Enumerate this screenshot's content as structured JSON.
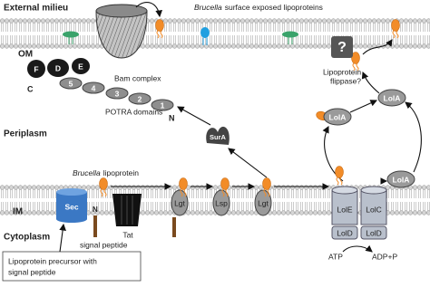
{
  "regions": {
    "external": "External milieu",
    "periplasm": "Periplasm",
    "cytoplasm": "Cytoplasm",
    "om": "OM",
    "im": "IM"
  },
  "surface_title": {
    "italic": "Brucella",
    "text": "surface exposed lipoproteins"
  },
  "bam": {
    "subunits": [
      "F",
      "D",
      "E",
      "C"
    ],
    "potra": [
      "5",
      "4",
      "3",
      "2",
      "1"
    ],
    "n_terminus": "N",
    "label": "Bam complex",
    "potra_label": "POTRA domains"
  },
  "flippase": {
    "symbol": "?",
    "label": [
      "Lipoprotein",
      "flippase?"
    ]
  },
  "lol_a": [
    "LolA",
    "LolA",
    "LolA"
  ],
  "sur_a": "SurA",
  "im_lipoprotein": {
    "italic": "Brucella",
    "text": "lipoprotein"
  },
  "im_proteins": {
    "sec": "Sec",
    "tat": "Tat",
    "lgt_1": "Lgt",
    "lsp": "Lsp",
    "lgt_2": "Lgt"
  },
  "signal_peptide": {
    "n_terminus": "N",
    "label": "signal peptide"
  },
  "lol_cde": {
    "lol_e": "LolE",
    "lol_c": "LolC",
    "lol_d": [
      "LolD",
      "LolD"
    ]
  },
  "atp": "ATP",
  "adp": "ADP+P",
  "precursor_note": [
    "Lipoprotein precursor with",
    "signal peptide"
  ]
}
